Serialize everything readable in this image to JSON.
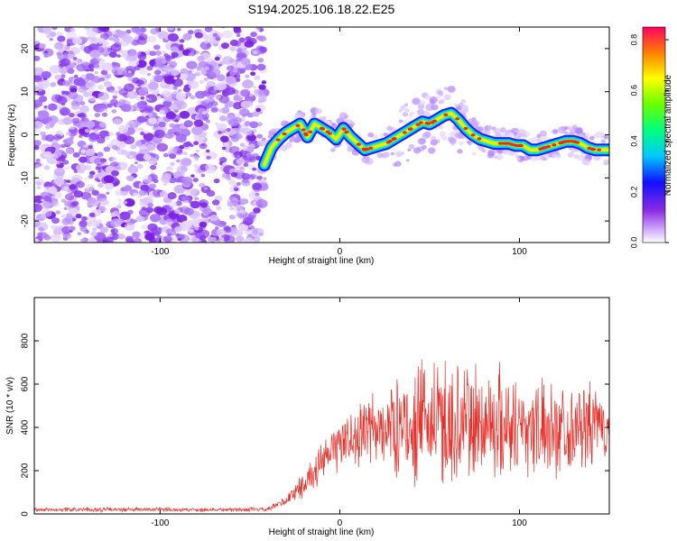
{
  "figure": {
    "title": "S194.2025.106.18.22.E25"
  },
  "chart_data": [
    {
      "type": "heatmap",
      "xlabel": "Height of straight line (km)",
      "ylabel": "Frequency (Hz)",
      "xlim": [
        -170,
        150
      ],
      "ylim": [
        -25,
        25
      ],
      "x_ticks": [
        -100,
        0,
        100
      ],
      "y_ticks": [
        -20,
        -10,
        0,
        10,
        20
      ],
      "colorbar": {
        "label": "Normalized spectral amplitude",
        "range": [
          0,
          0.85
        ],
        "ticks": [
          0.0,
          0.2,
          0.4,
          0.6,
          0.8
        ],
        "colormap": "rainbow"
      },
      "ridge": {
        "x": [
          -42,
          -38,
          -34,
          -30,
          -26,
          -22,
          -18,
          -14,
          -10,
          -6,
          -2,
          2,
          6,
          10,
          14,
          18,
          22,
          26,
          30,
          34,
          38,
          42,
          46,
          50,
          54,
          58,
          62,
          66,
          70,
          74,
          78,
          82,
          86,
          90,
          94,
          98,
          102,
          106,
          110,
          114,
          118,
          122,
          126,
          130,
          134,
          138,
          142,
          146,
          150
        ],
        "y": [
          -7,
          -3,
          -1,
          0.5,
          1.5,
          2.5,
          -0.5,
          2.5,
          1.5,
          0.5,
          -1,
          1.5,
          -0.5,
          -2,
          -3.5,
          -3,
          -2.5,
          -2,
          -1,
          0,
          1,
          2,
          3,
          2.5,
          3.5,
          4.5,
          5,
          3.5,
          1.5,
          0,
          -1,
          -1.5,
          -2,
          -2,
          -2,
          -2.5,
          -2.5,
          -3.5,
          -3.5,
          -3,
          -2.5,
          -2,
          -1.5,
          -1.5,
          -2,
          -3,
          -3.5,
          -3.5,
          -3.5
        ]
      }
    },
    {
      "type": "line",
      "xlabel": "Height of straight line (km)",
      "ylabel": "SNR (10 * v/v)",
      "xlim": [
        -170,
        150
      ],
      "ylim": [
        0,
        1000
      ],
      "x_ticks": [
        -100,
        0,
        100
      ],
      "y_ticks": [
        0,
        200,
        400,
        600,
        800
      ],
      "color": "#e8302a",
      "envelope": {
        "x": [
          -170,
          -40,
          -30,
          -20,
          -10,
          0,
          10,
          20,
          30,
          40,
          50,
          60,
          70,
          80,
          90,
          100,
          110,
          120,
          130,
          140,
          150
        ],
        "mid": [
          20,
          20,
          60,
          140,
          230,
          330,
          360,
          390,
          400,
          410,
          420,
          420,
          420,
          420,
          420,
          410,
          400,
          400,
          400,
          400,
          400
        ],
        "amp": [
          10,
          10,
          30,
          60,
          90,
          120,
          150,
          180,
          210,
          250,
          290,
          320,
          300,
          280,
          260,
          240,
          220,
          210,
          200,
          190,
          180
        ]
      }
    }
  ]
}
